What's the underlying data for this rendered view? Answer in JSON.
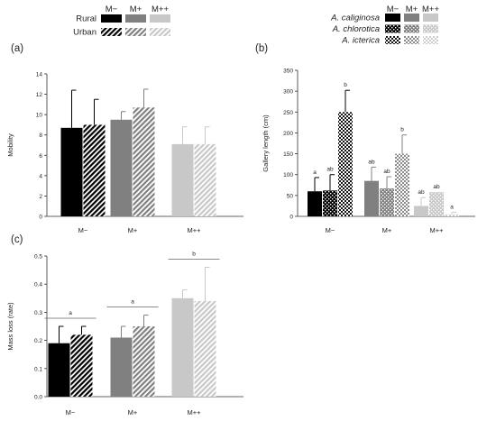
{
  "legends": {
    "left": {
      "columns": [
        "M−",
        "M+",
        "M++"
      ],
      "rows": [
        {
          "label": "Rural",
          "pattern": "solid"
        },
        {
          "label": "Urban",
          "pattern": "hatch"
        }
      ]
    },
    "right": {
      "columns": [
        "M−",
        "M+",
        "M++"
      ],
      "rows": [
        {
          "label": "A. caliginosa",
          "pattern": "solid"
        },
        {
          "label": "A. chlorotica",
          "pattern": "checker"
        },
        {
          "label": "A. icterica",
          "pattern": "dots"
        }
      ]
    }
  },
  "colors": {
    "M-": "#000000",
    "M+": "#808080",
    "M++": "#c8c8c8"
  },
  "chart_data": [
    {
      "id": "a",
      "type": "bar",
      "panel_label": "(a)",
      "categories": [
        "M−",
        "M+",
        "M++"
      ],
      "series": [
        {
          "name": "Rural",
          "values": [
            8.7,
            9.5,
            7.1
          ],
          "errors": [
            3.7,
            0.8,
            1.7
          ]
        },
        {
          "name": "Urban",
          "values": [
            9.0,
            10.7,
            7.1
          ],
          "errors": [
            2.5,
            1.8,
            1.7
          ]
        }
      ],
      "ylabel": "Mobility",
      "ylim": [
        0,
        14
      ],
      "yticks": [
        0,
        2,
        4,
        6,
        8,
        10,
        12,
        14
      ]
    },
    {
      "id": "b",
      "type": "bar",
      "panel_label": "(b)",
      "categories": [
        "M−",
        "M+",
        "M++"
      ],
      "series": [
        {
          "name": "A. caliginosa",
          "values": [
            60,
            85,
            25
          ],
          "errors": [
            33,
            33,
            20
          ],
          "letters": [
            "a",
            "ab",
            "ab"
          ]
        },
        {
          "name": "A. chlorotica",
          "values": [
            62,
            67,
            58
          ],
          "errors": [
            38,
            28,
            0
          ],
          "letters": [
            "ab",
            "ab",
            "ab"
          ]
        },
        {
          "name": "A. icterica",
          "values": [
            250,
            150,
            5
          ],
          "errors": [
            52,
            45,
            5
          ],
          "letters": [
            "b",
            "b",
            "a"
          ]
        }
      ],
      "ylabel": "Gallery length (cm)",
      "ylim": [
        0,
        350
      ],
      "yticks": [
        0,
        50,
        100,
        150,
        200,
        250,
        300,
        350
      ]
    },
    {
      "id": "c",
      "type": "bar",
      "panel_label": "(c)",
      "categories": [
        "M−",
        "M+",
        "M++"
      ],
      "series": [
        {
          "name": "Rural",
          "values": [
            0.19,
            0.21,
            0.35
          ],
          "errors": [
            0.06,
            0.04,
            0.03
          ]
        },
        {
          "name": "Urban",
          "values": [
            0.22,
            0.25,
            0.34
          ],
          "errors": [
            0.03,
            0.04,
            0.12
          ]
        }
      ],
      "group_letters": [
        "a",
        "a",
        "b"
      ],
      "ylabel": "Mass loss (rate)",
      "ylim": [
        0,
        0.5
      ],
      "yticks": [
        0,
        0.1,
        0.2,
        0.3,
        0.4,
        0.5
      ]
    }
  ]
}
